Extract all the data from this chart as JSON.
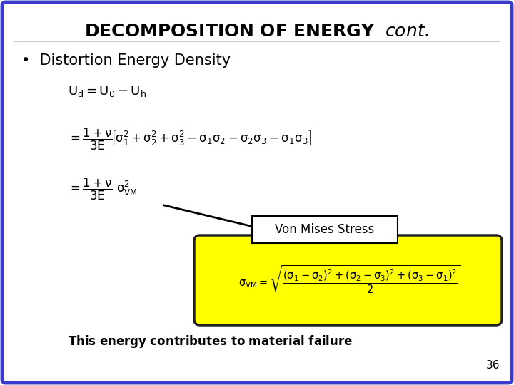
{
  "title_normal": "DECOMPOSITION OF ENERGY ",
  "title_italic": "cont.",
  "background_color": "#ffffff",
  "border_color": "#3a3acc",
  "border_linewidth": 3.5,
  "slide_number": "36",
  "bullet_text": "Distortion Energy Density",
  "von_mises_label": "Von Mises Stress",
  "footer_text": "This energy contributes to material failure",
  "yellow_box_color": "#ffff00",
  "yellow_box_border": "#222222",
  "von_mises_box_bg": "#ffffff",
  "von_mises_box_border": "#000000",
  "text_color": "#000000",
  "title_color": "#000000",
  "font_size_title": 18,
  "font_size_bullet": 15,
  "font_size_eq": 12,
  "font_size_footer": 12
}
